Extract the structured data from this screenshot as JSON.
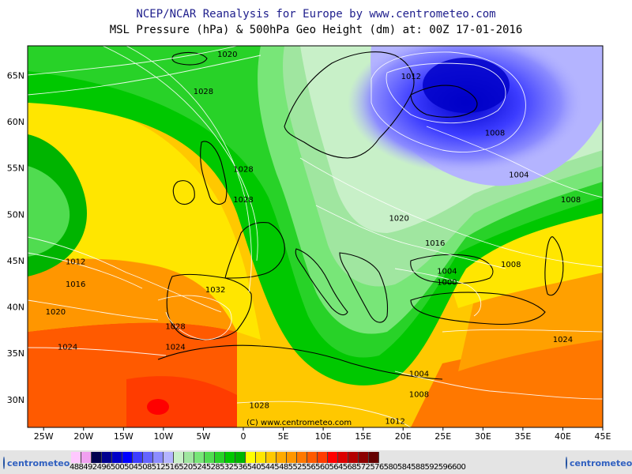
{
  "title": "NCEP/NCAR Reanalysis for Europe by www.centrometeo.com",
  "subtitle": "MSL Pressure (hPa) & 500hPa Geo Height (dm) at: 00Z 17-01-2016",
  "copyright": "(C) www.centrometeo.com",
  "logo_text": "centrometeo",
  "lon_ticks": [
    "25W",
    "20W",
    "15W",
    "10W",
    "5W",
    "0",
    "5E",
    "10E",
    "15E",
    "20E",
    "25E",
    "30E",
    "35E",
    "40E",
    "45E"
  ],
  "lat_ticks": [
    "65N",
    "60N",
    "55N",
    "50N",
    "45N",
    "40N",
    "35N",
    "30N"
  ],
  "isobar_labels": [
    {
      "text": "1020",
      "lon": -2,
      "lat": 67
    },
    {
      "text": "1028",
      "lon": -5,
      "lat": 63
    },
    {
      "text": "1012",
      "lon": 21,
      "lat": 64.6
    },
    {
      "text": "1008",
      "lon": 31.5,
      "lat": 58.5
    },
    {
      "text": "1004",
      "lon": 34.5,
      "lat": 54
    },
    {
      "text": "1008",
      "lon": 41,
      "lat": 51.3
    },
    {
      "text": "1028",
      "lon": 0,
      "lat": 54.6
    },
    {
      "text": "1028",
      "lon": 0,
      "lat": 51.3
    },
    {
      "text": "1020",
      "lon": 19.5,
      "lat": 49.3
    },
    {
      "text": "1016",
      "lon": 24,
      "lat": 46.6
    },
    {
      "text": "1008",
      "lon": 33.5,
      "lat": 44.3
    },
    {
      "text": "1004",
      "lon": 25.5,
      "lat": 43.6
    },
    {
      "text": "1000",
      "lon": 25.5,
      "lat": 42.4
    },
    {
      "text": "1012",
      "lon": -21,
      "lat": 44.6
    },
    {
      "text": "1016",
      "lon": -21,
      "lat": 42.2
    },
    {
      "text": "1032",
      "lon": -3.5,
      "lat": 41.6
    },
    {
      "text": "1020",
      "lon": -23.5,
      "lat": 39.2
    },
    {
      "text": "1028",
      "lon": -8.5,
      "lat": 37.6
    },
    {
      "text": "1024",
      "lon": -22,
      "lat": 35.4
    },
    {
      "text": "1024",
      "lon": -8.5,
      "lat": 35.4
    },
    {
      "text": "1024",
      "lon": 40,
      "lat": 36.2
    },
    {
      "text": "1004",
      "lon": 22,
      "lat": 32.5
    },
    {
      "text": "1008",
      "lon": 22,
      "lat": 30.3
    },
    {
      "text": "1028",
      "lon": 2,
      "lat": 29.1
    },
    {
      "text": "1012",
      "lon": 19,
      "lat": 27.4
    }
  ],
  "legend_labels": [
    "488",
    "492",
    "496",
    "500",
    "504",
    "508",
    "512",
    "516",
    "520",
    "524",
    "528",
    "532",
    "536",
    "540",
    "544",
    "548",
    "552",
    "556",
    "560",
    "564",
    "568",
    "572",
    "576",
    "580",
    "584",
    "588",
    "592",
    "596",
    "600"
  ],
  "legend_colors": [
    "#ffc8ff",
    "#f0a0f0",
    "#000050",
    "#000090",
    "#0000c8",
    "#0000ff",
    "#3c3cff",
    "#6464ff",
    "#8c8cff",
    "#b4b4ff",
    "#c8f0c8",
    "#a0e6a0",
    "#78e678",
    "#50dc50",
    "#28d228",
    "#00c800",
    "#00b400",
    "#ffff00",
    "#ffe600",
    "#ffc800",
    "#ffaa00",
    "#ff9600",
    "#ff7800",
    "#ff5a00",
    "#ff3c00",
    "#ff0000",
    "#dc0000",
    "#b40000",
    "#8c0000",
    "#640000"
  ],
  "colors": {
    "title": "#1e1e8c",
    "blue_low": "#3232dc",
    "green": "#00c800",
    "yellow": "#ffff00",
    "orange": "#ff9600",
    "red": "#ff5a00"
  }
}
